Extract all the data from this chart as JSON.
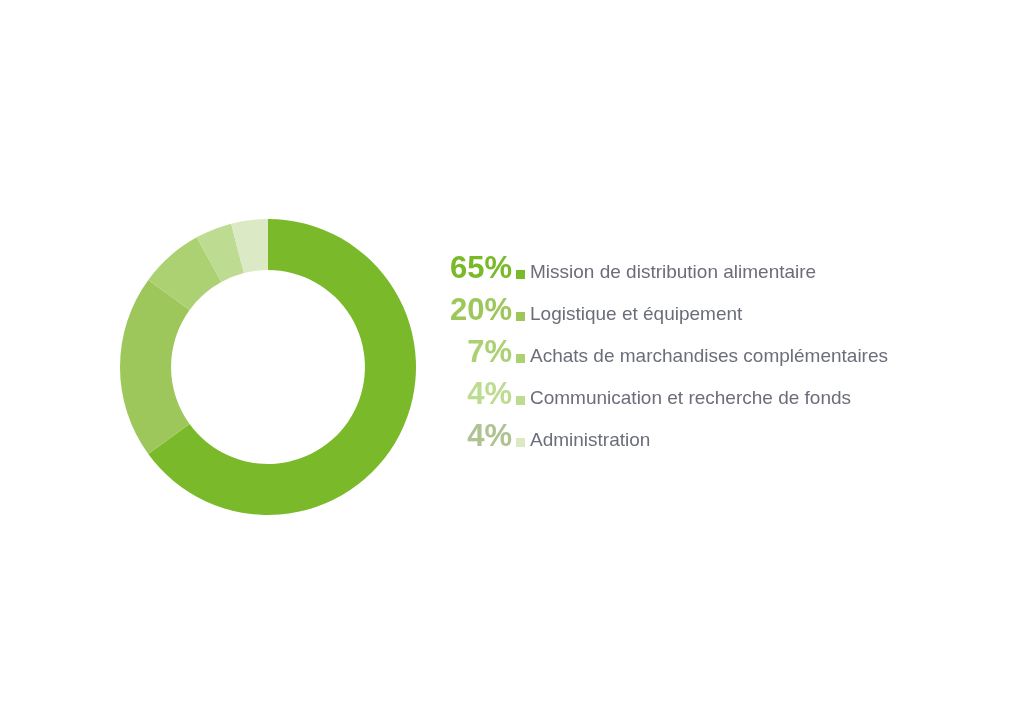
{
  "chart_data": {
    "type": "donut",
    "categories": [
      "Mission de distribution alimentaire",
      "Logistique et équipement",
      "Achats de marchandises complémentaires",
      "Communication et recherche de fonds",
      "Administration"
    ],
    "values": [
      65,
      20,
      7,
      4,
      4
    ],
    "value_labels": [
      "65%",
      "20%",
      "7%",
      "4%",
      "4%"
    ],
    "colors": [
      "#7ab929",
      "#9dc75a",
      "#acd173",
      "#bedb92",
      "#dbe9c4"
    ],
    "legend": "right"
  }
}
